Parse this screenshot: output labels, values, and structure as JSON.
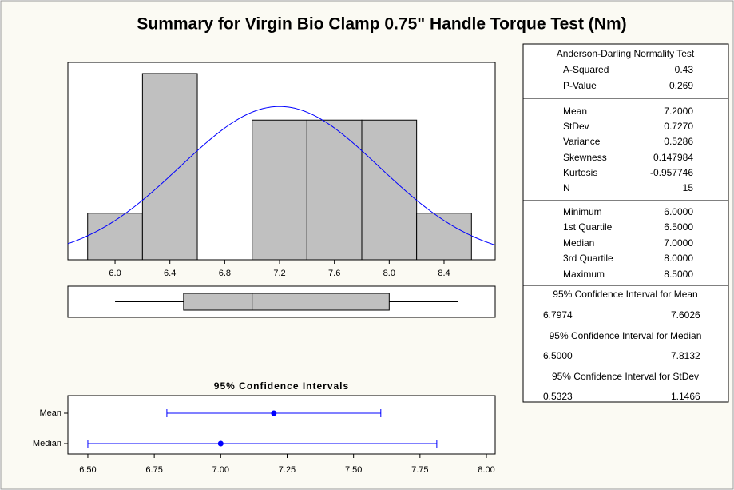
{
  "title": "Summary for Virgin Bio Clamp 0.75\" Handle Torque Test (Nm)",
  "chart_data": [
    {
      "type": "histogram",
      "bins": [
        5.8,
        6.2,
        6.6,
        7.0,
        7.4,
        7.8,
        8.2,
        8.6
      ],
      "counts": [
        1,
        4,
        0,
        3,
        3,
        3,
        1
      ],
      "xlim": [
        5.656,
        8.773
      ],
      "ylim": [
        0,
        4.24
      ],
      "xticks": [
        {
          "value": 6,
          "label": "6.0"
        },
        6.4,
        6.8,
        7.2,
        7.6,
        {
          "value": 8,
          "label": "8.0"
        },
        8.4
      ],
      "color": "#c0c0c0",
      "curve_color": "#0000ff"
    },
    {
      "type": "box",
      "min": 6.0,
      "q1": 6.5,
      "median": 7.0,
      "q3": 8.0,
      "max": 8.5,
      "color": "#c0c0c0"
    },
    {
      "type": "interval",
      "title": "95% Confidence Intervals",
      "series": [
        {
          "name": "Mean",
          "estimate": 7.2,
          "lower": 6.7974,
          "upper": 7.6026
        },
        {
          "name": "Median",
          "estimate": 7.0,
          "lower": 6.5,
          "upper": 7.8132
        }
      ],
      "xlim": [
        6.425,
        8.033
      ],
      "xticks": [
        {
          "value": 6.5,
          "label": "6.50"
        },
        {
          "value": 6.75,
          "label": "6.75"
        },
        {
          "value": 7,
          "label": "7.00"
        },
        {
          "value": 7.25,
          "label": "7.25"
        },
        {
          "value": 7.5,
          "label": "7.50"
        },
        {
          "value": 7.75,
          "label": "7.75"
        },
        {
          "value": 8,
          "label": "8.00"
        }
      ],
      "color": "#0000ff"
    }
  ],
  "stats": {
    "normality_test": {
      "title": "Anderson-Darling Normality Test",
      "rows": [
        [
          "A-Squared",
          "0.43"
        ],
        [
          "P-Value",
          "0.269"
        ]
      ]
    },
    "descriptive": [
      [
        "Mean",
        "7.2000"
      ],
      [
        "StDev",
        "0.7270"
      ],
      [
        "Variance",
        "0.5286"
      ],
      [
        "Skewness",
        "0.147984"
      ],
      [
        "Kurtosis",
        "-0.957746"
      ],
      [
        "N",
        "15"
      ]
    ],
    "quartiles": [
      [
        "Minimum",
        "6.0000"
      ],
      [
        "1st Quartile",
        "6.5000"
      ],
      [
        "Median",
        "7.0000"
      ],
      [
        "3rd Quartile",
        "8.0000"
      ],
      [
        "Maximum",
        "8.5000"
      ]
    ],
    "intervals": [
      {
        "title": "95% Confidence Interval for Mean",
        "lower": "6.7974",
        "upper": "7.6026"
      },
      {
        "title": "95% Confidence Interval for Median",
        "lower": "6.5000",
        "upper": "7.8132"
      },
      {
        "title": "95% Confidence Interval for StDev",
        "lower": "0.5323",
        "upper": "1.1466"
      }
    ]
  }
}
